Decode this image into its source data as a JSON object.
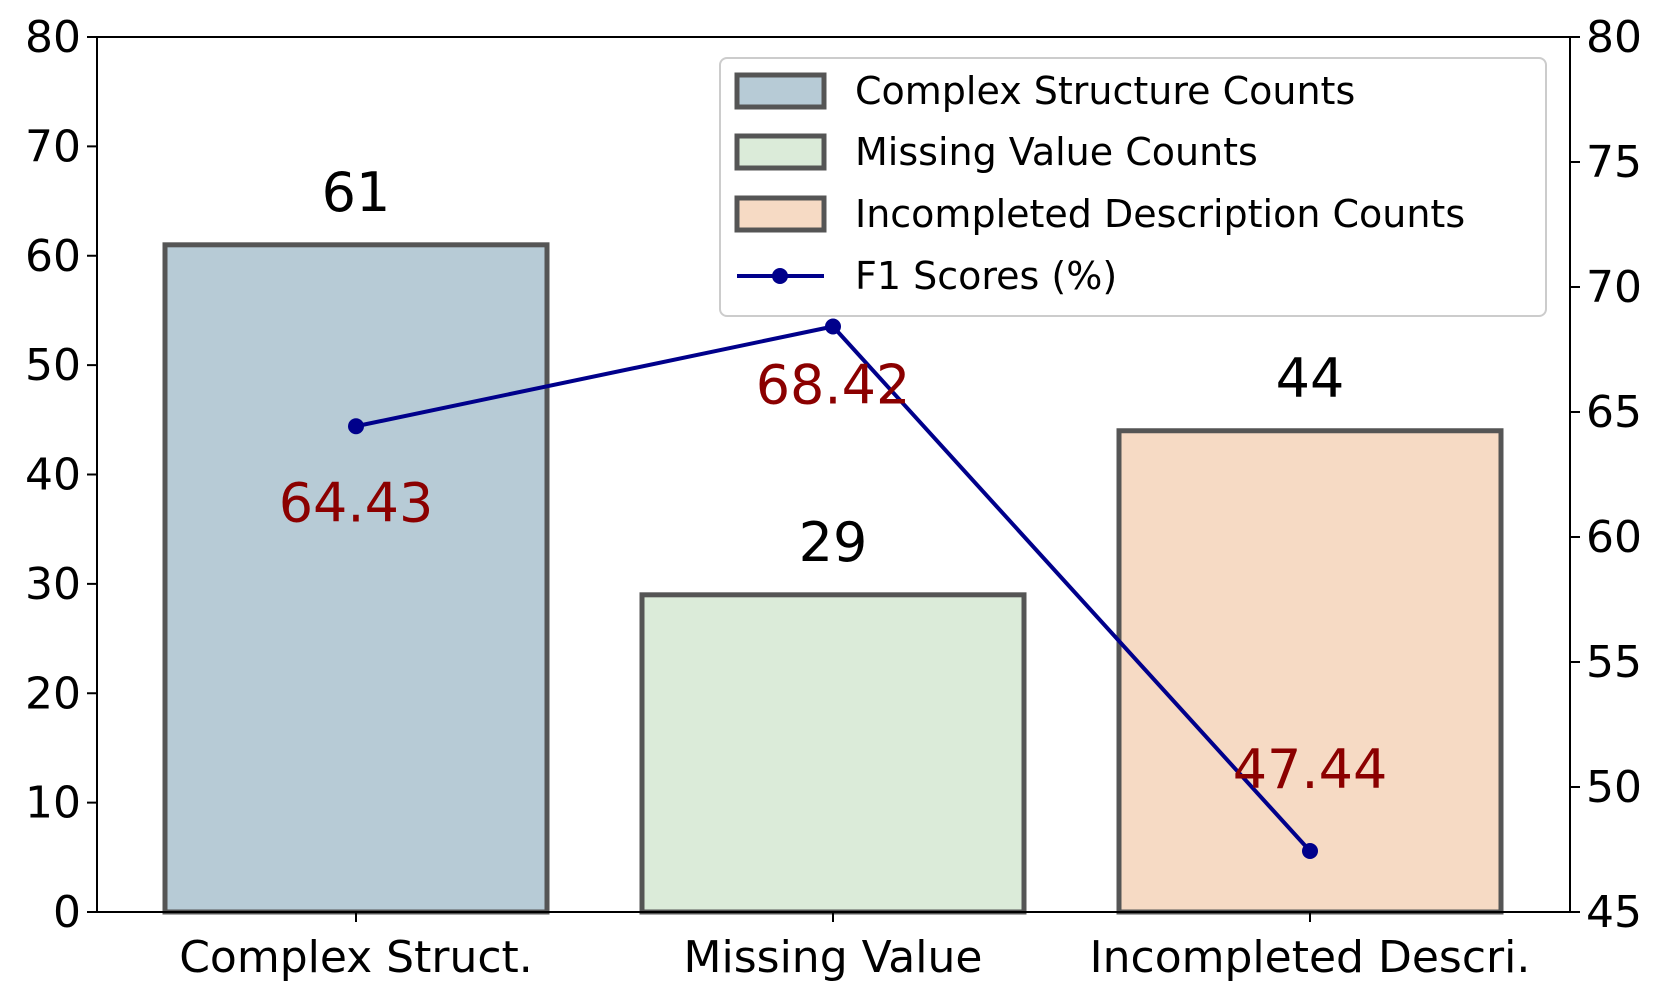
{
  "chart_data": {
    "type": "bar",
    "categories": [
      "Complex Struct.",
      "Missing Value",
      "Incompleted Descri."
    ],
    "series": [
      {
        "name": "Complex Structure Counts",
        "values": [
          61,
          null,
          null
        ],
        "color": "#b7cbd6"
      },
      {
        "name": "Missing Value Counts",
        "values": [
          null,
          29,
          null
        ],
        "color": "#dbebd9"
      },
      {
        "name": "Incompleted Description Counts",
        "values": [
          null,
          null,
          44
        ],
        "color": "#f6dac4"
      }
    ],
    "bar_values": [
      61,
      29,
      44
    ],
    "bar_value_labels": [
      "61",
      "29",
      "44"
    ],
    "line_series": {
      "name": "F1 Scores (%)",
      "axis": "right",
      "values": [
        64.43,
        68.42,
        47.44
      ],
      "labels": [
        "64.43",
        "68.42",
        "47.44"
      ],
      "color": "#00008b",
      "label_color": "#8b0000"
    },
    "ylim_left": [
      0,
      80
    ],
    "yticks_left": [
      0,
      10,
      20,
      30,
      40,
      50,
      60,
      70,
      80
    ],
    "ylim_right": [
      45,
      80
    ],
    "yticks_right": [
      45,
      50,
      55,
      60,
      65,
      70,
      75,
      80
    ],
    "bar_edge_color": "#555555",
    "grid": false,
    "legend_position": "top-right",
    "title": "",
    "xlabel": "",
    "ylabel": ""
  }
}
